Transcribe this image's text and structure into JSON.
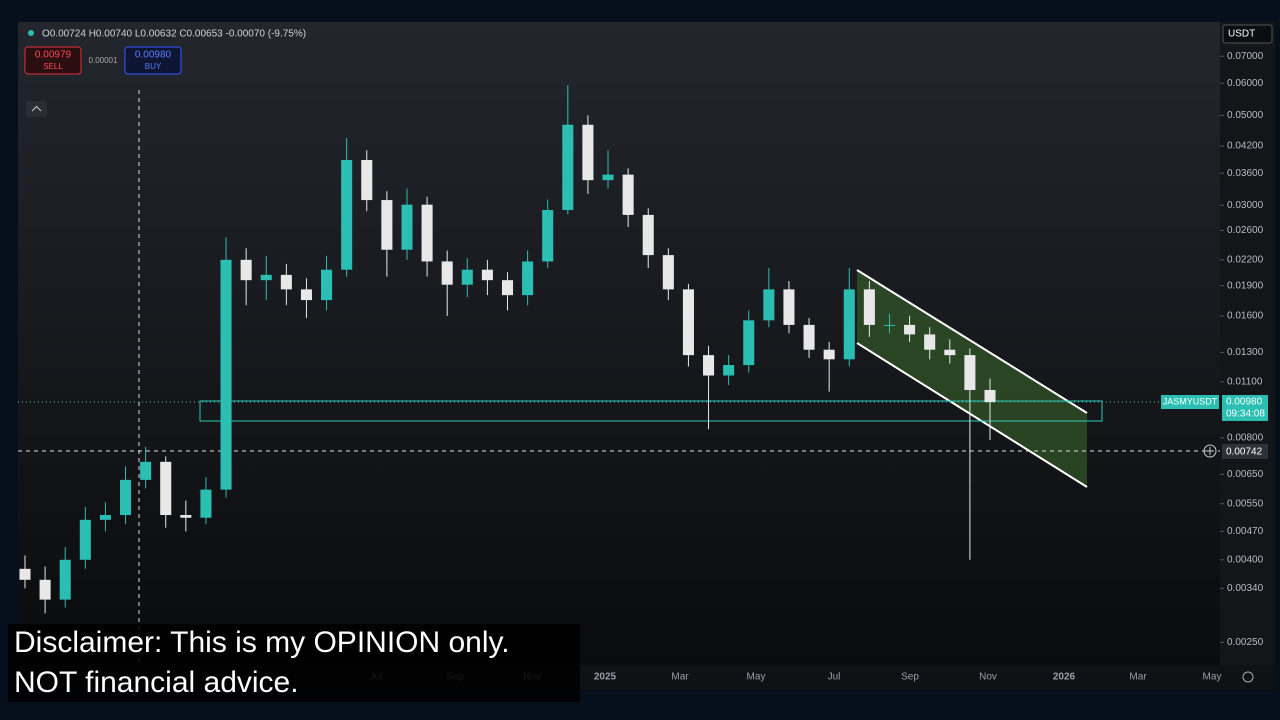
{
  "header": {
    "ohlc": "O0.00724 H0.00740 L0.00632 C0.00653 -0.00070 (-9.75%)",
    "sell_price": "0.00979",
    "sell_label": "SELL",
    "spread": "0.00001",
    "buy_price": "0.00980",
    "buy_label": "BUY",
    "currency": "USDT"
  },
  "price_tags": {
    "symbol": "JASMYUSDT",
    "last_price": "0.00980",
    "countdown": "09:34:08",
    "crosshair_price": "0.00742"
  },
  "time_axis": [
    "Jul",
    "Sep",
    "Nov",
    "2025",
    "Mar",
    "May",
    "Jul",
    "Sep",
    "Nov",
    "2026",
    "Mar",
    "May"
  ],
  "disclaimer": [
    "Disclaimer: This is my OPINION only.",
    "NOT financial advice."
  ],
  "chart_data": {
    "type": "candlestick",
    "log_scale": true,
    "grid": false,
    "colors": {
      "up": "#2bbfb3",
      "down": "#e8e8e8"
    },
    "ylim": [
      0.0022,
      0.085
    ],
    "yticks": [
      {
        "value": 0.07,
        "label": "0.07000"
      },
      {
        "value": 0.06,
        "label": "0.06000"
      },
      {
        "value": 0.05,
        "label": "0.05000"
      },
      {
        "value": 0.042,
        "label": "0.04200"
      },
      {
        "value": 0.036,
        "label": "0.03600"
      },
      {
        "value": 0.03,
        "label": "0.03000"
      },
      {
        "value": 0.026,
        "label": "0.02600"
      },
      {
        "value": 0.022,
        "label": "0.02200"
      },
      {
        "value": 0.019,
        "label": "0.01900"
      },
      {
        "value": 0.016,
        "label": "0.01600"
      },
      {
        "value": 0.013,
        "label": "0.01300"
      },
      {
        "value": 0.011,
        "label": "0.01100"
      },
      {
        "value": 0.008,
        "label": "0.00800"
      },
      {
        "value": 0.0065,
        "label": "0.00650"
      },
      {
        "value": 0.0055,
        "label": "0.00550"
      },
      {
        "value": 0.0047,
        "label": "0.00470"
      },
      {
        "value": 0.004,
        "label": "0.00400"
      },
      {
        "value": 0.0034,
        "label": "0.00340"
      },
      {
        "value": 0.0025,
        "label": "0.00250"
      }
    ],
    "open": [
      0.0038,
      0.00357,
      0.00319,
      0.004,
      0.00502,
      0.00516,
      0.0063,
      0.00698,
      0.00516,
      0.00508,
      0.00596,
      0.022,
      0.0196,
      0.0202,
      0.0186,
      0.0175,
      0.0208,
      0.0388,
      0.0309,
      0.0233,
      0.0301,
      0.0218,
      0.0191,
      0.0208,
      0.0196,
      0.018,
      0.0218,
      0.0292,
      0.0474,
      0.0346,
      0.0357,
      0.0284,
      0.0226,
      0.0186,
      0.0128,
      0.0114,
      0.0121,
      0.0156,
      0.0186,
      0.0152,
      0.0132,
      0.0125,
      0.0186,
      0.0152,
      0.0152,
      0.0144,
      0.0132,
      0.0128,
      0.0105
    ],
    "high": [
      0.0041,
      0.00385,
      0.0043,
      0.0054,
      0.00555,
      0.0068,
      0.0076,
      0.0072,
      0.0056,
      0.0064,
      0.025,
      0.0235,
      0.0225,
      0.0215,
      0.0198,
      0.0225,
      0.044,
      0.041,
      0.0325,
      0.033,
      0.0315,
      0.0232,
      0.0222,
      0.022,
      0.0205,
      0.0232,
      0.031,
      0.0594,
      0.05,
      0.041,
      0.037,
      0.0295,
      0.0235,
      0.0192,
      0.0135,
      0.0128,
      0.0165,
      0.021,
      0.0195,
      0.0158,
      0.0138,
      0.021,
      0.0195,
      0.0162,
      0.016,
      0.015,
      0.014,
      0.0133,
      0.0112
    ],
    "low": [
      0.0034,
      0.00295,
      0.00305,
      0.0038,
      0.0047,
      0.0049,
      0.006,
      0.0048,
      0.0047,
      0.0049,
      0.0057,
      0.017,
      0.0175,
      0.017,
      0.0158,
      0.0165,
      0.02,
      0.029,
      0.02,
      0.022,
      0.02,
      0.016,
      0.0178,
      0.018,
      0.0165,
      0.017,
      0.021,
      0.0285,
      0.032,
      0.033,
      0.0265,
      0.021,
      0.0175,
      0.012,
      0.0084,
      0.0108,
      0.0116,
      0.015,
      0.0145,
      0.0126,
      0.0104,
      0.012,
      0.0142,
      0.0145,
      0.0138,
      0.0125,
      0.0122,
      0.004,
      0.0079
    ],
    "close": [
      0.00357,
      0.00319,
      0.004,
      0.00502,
      0.00516,
      0.0063,
      0.00698,
      0.00516,
      0.00508,
      0.00596,
      0.022,
      0.0196,
      0.0202,
      0.0186,
      0.0175,
      0.0208,
      0.0388,
      0.0309,
      0.0233,
      0.0301,
      0.0218,
      0.0191,
      0.0208,
      0.0196,
      0.018,
      0.0218,
      0.0292,
      0.0474,
      0.0346,
      0.0357,
      0.0284,
      0.0226,
      0.0186,
      0.0128,
      0.0114,
      0.0121,
      0.0156,
      0.0186,
      0.0152,
      0.0132,
      0.0125,
      0.0186,
      0.0152,
      0.0152,
      0.0144,
      0.0132,
      0.0128,
      0.0105,
      0.0098
    ]
  }
}
